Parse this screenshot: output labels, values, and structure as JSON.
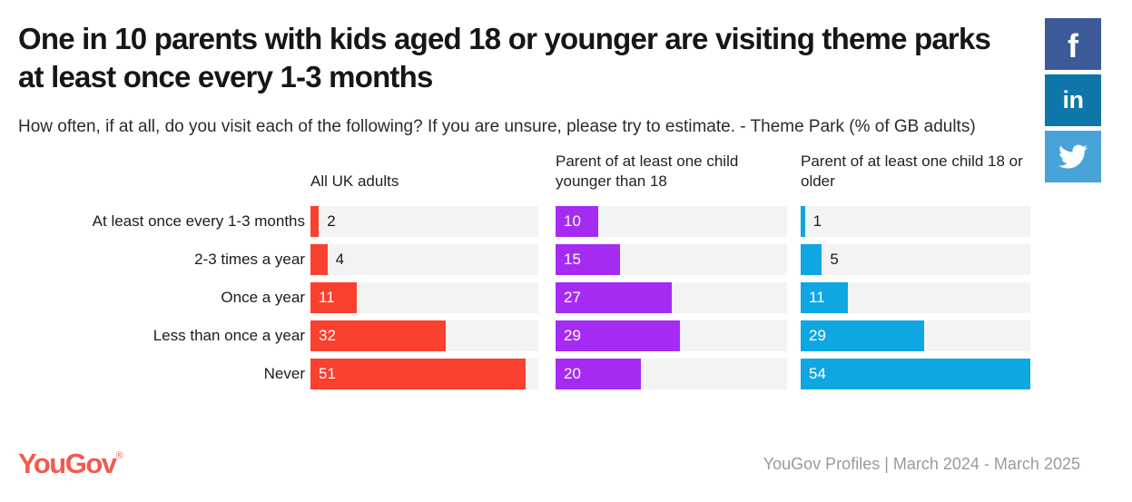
{
  "title": "One in 10 parents with kids aged 18 or younger are visiting theme parks at least once every 1-3 months",
  "subtitle": "How often, if at all, do you visit each of the following? If you are unsure, please try to estimate. - Theme Park (% of GB adults)",
  "social": [
    {
      "name": "facebook-share",
      "glyph": "f",
      "color": "#3b5a97"
    },
    {
      "name": "linkedin-share",
      "glyph": "in",
      "color": "#0e76a8"
    },
    {
      "name": "twitter-share",
      "glyph": "",
      "color": "#48a3d8"
    }
  ],
  "chart_data": {
    "type": "bar",
    "orientation": "horizontal",
    "title": "One in 10 parents with kids aged 18 or younger are visiting theme parks at least once every 1-3 months",
    "subtitle": "How often, if at all, do you visit each of the following? If you are unsure, please try to estimate. - Theme Park (% of GB adults)",
    "unit": "% of GB adults",
    "categories": [
      "At least once every 1-3 months",
      "2-3 times a year",
      "Once a year",
      "Less than once a year",
      "Never"
    ],
    "series": [
      {
        "name": "All UK adults",
        "color": "#fa402e",
        "values": [
          2,
          4,
          11,
          32,
          51
        ]
      },
      {
        "name": "Parent of at least one child younger than 18",
        "color": "#a62bf2",
        "values": [
          10,
          15,
          27,
          29,
          20
        ]
      },
      {
        "name": "Parent of at least one child 18 or older",
        "color": "#0fa7e1",
        "values": [
          1,
          5,
          11,
          29,
          54
        ]
      }
    ],
    "xlim": [
      0,
      54
    ],
    "value_labels": true,
    "label_inside_min": 10,
    "track_color": "#f3f3f3",
    "legend_position": "column-headers",
    "grid": false
  },
  "footer": {
    "logo_text": "YouGov",
    "registered_mark": "®",
    "logo_color": "#f15b4d",
    "source": "YouGov Profiles | March 2024 - March 2025"
  }
}
